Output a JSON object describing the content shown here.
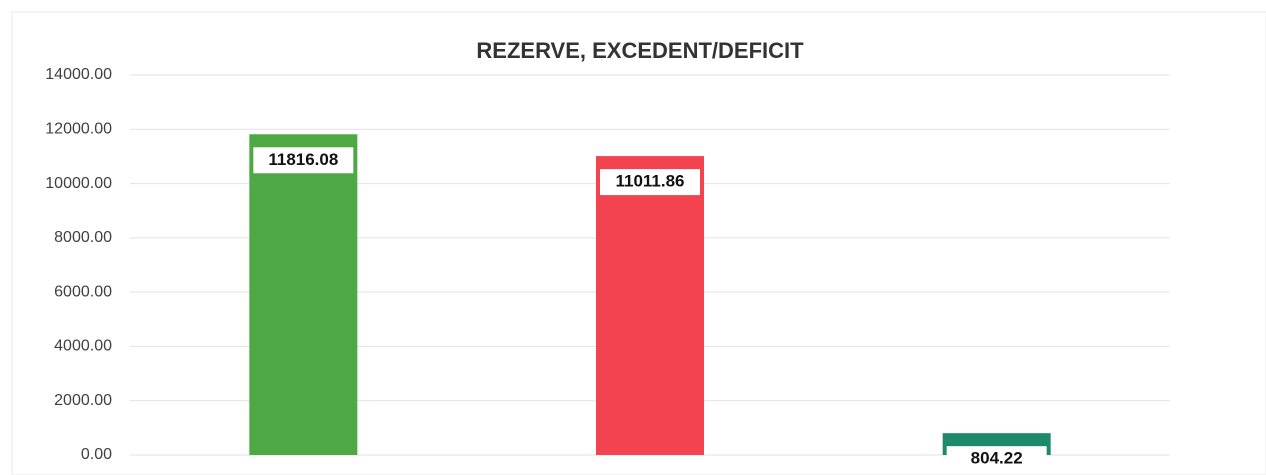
{
  "chart_data": {
    "type": "bar",
    "title": "REZERVE, EXCEDENT/DEFICIT",
    "categories": [
      null,
      null,
      null
    ],
    "values": [
      11816.08,
      11011.86,
      804.22
    ],
    "colors": [
      "#4ea843",
      "#f2434f",
      "#1e8a6c"
    ],
    "ylim": [
      0,
      14000
    ],
    "yticks": [
      {
        "value": 0,
        "label": "0.00"
      },
      {
        "value": 2000,
        "label": "2000.00"
      },
      {
        "value": 4000,
        "label": "4000.00"
      },
      {
        "value": 6000,
        "label": "6000.00"
      },
      {
        "value": 8000,
        "label": "8000.00"
      },
      {
        "value": 10000,
        "label": "10000.00"
      },
      {
        "value": 12000,
        "label": "12000.00"
      },
      {
        "value": 14000,
        "label": "14000.00"
      }
    ],
    "grid": true
  }
}
